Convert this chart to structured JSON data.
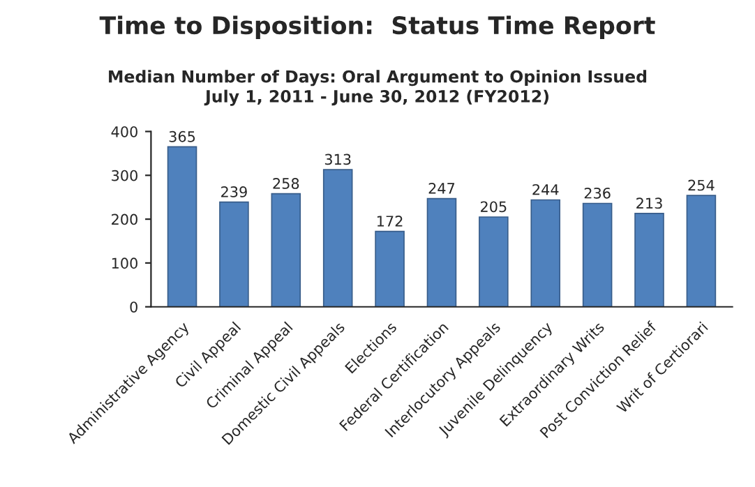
{
  "chart_data": {
    "type": "bar",
    "title": "Time to Disposition:  Status Time Report",
    "subtitle": "Median Number of Days: Oral Argument to Opinion Issued\nJuly 1, 2011 - June 30, 2012 (FY2012)",
    "categories": [
      "Administrative Agency",
      "Civil Appeal",
      "Criminal Appeal",
      "Domestic Civil Appeals",
      "Elections",
      "Federal Certification",
      "Interlocutory Appeals",
      "Juvenile Delinquency",
      "Extraordinary Writs",
      "Post Conviction Relief",
      "Writ of Certiorari"
    ],
    "values": [
      365,
      239,
      258,
      313,
      172,
      247,
      205,
      244,
      236,
      213,
      254
    ],
    "color": "#4f81bd",
    "ylim": [
      0,
      400
    ],
    "yticks": [
      0,
      100,
      200,
      300,
      400
    ],
    "data_labels": true,
    "grid": false
  }
}
